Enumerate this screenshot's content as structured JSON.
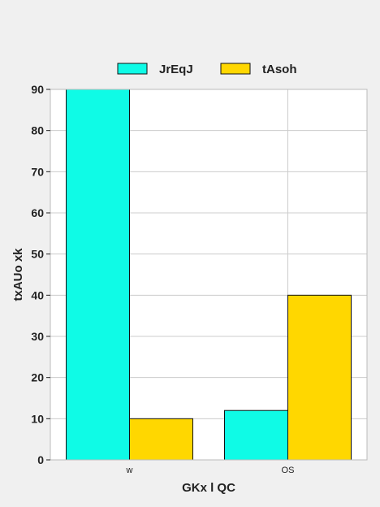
{
  "chart_data": {
    "type": "bar",
    "categories": [
      "w",
      "OS"
    ],
    "series": [
      {
        "name": "JrEqJ",
        "color": "#0ffbe6",
        "values": [
          90,
          12
        ]
      },
      {
        "name": "tAsoh",
        "color": "#ffd700",
        "values": [
          10,
          40
        ]
      }
    ],
    "xlabel": "GKx l QC",
    "ylabel": "txAUo xk",
    "ylim": [
      0,
      90
    ],
    "yticks": [
      0,
      10,
      20,
      30,
      40,
      50,
      60,
      70,
      80,
      90
    ],
    "grid": true,
    "legend_position": "top-center"
  }
}
